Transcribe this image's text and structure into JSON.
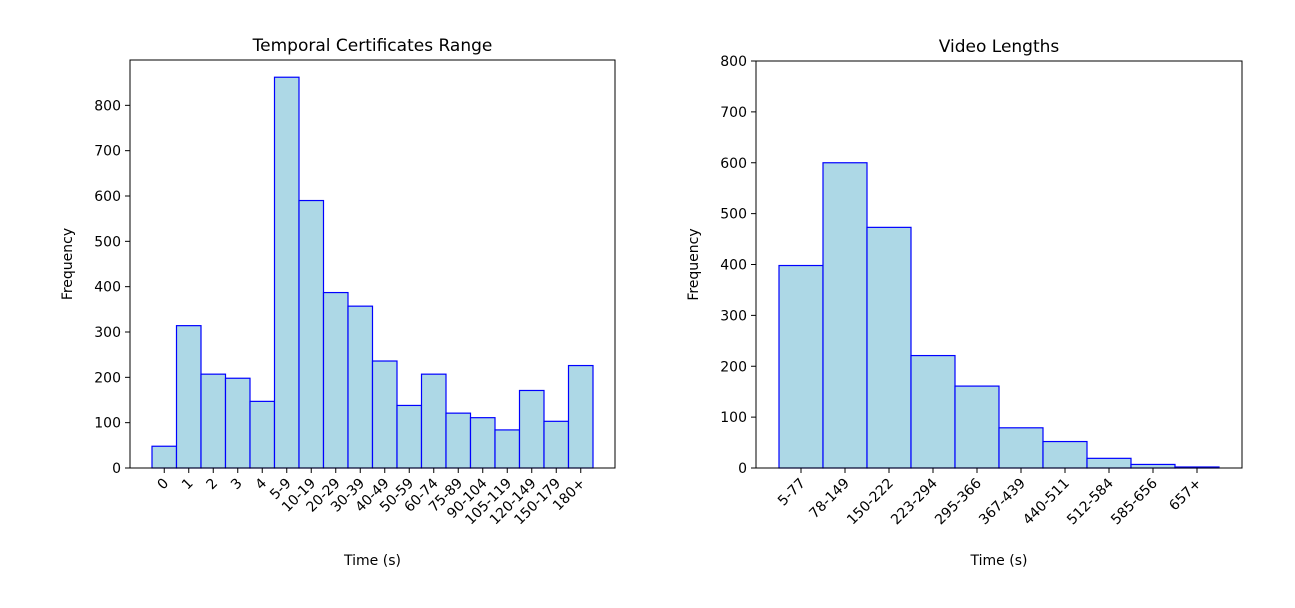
{
  "chart_data": [
    {
      "type": "bar",
      "title": "Temporal Certificates Range",
      "xlabel": "Time (s)",
      "ylabel": "Frequency",
      "categories": [
        "0",
        "1",
        "2",
        "3",
        "4",
        "5-9",
        "10-19",
        "20-29",
        "30-39",
        "40-49",
        "50-59",
        "60-74",
        "75-89",
        "90-104",
        "105-119",
        "120-149",
        "150-179",
        "180+"
      ],
      "values": [
        48,
        314,
        207,
        198,
        147,
        862,
        590,
        387,
        357,
        236,
        138,
        207,
        121,
        111,
        84,
        171,
        103,
        226
      ],
      "ylim": [
        0,
        900
      ],
      "yticks": [
        0,
        100,
        200,
        300,
        400,
        500,
        600,
        700,
        800
      ],
      "bar_fill": "#add8e6",
      "bar_edge": "#0000ff",
      "grid": false
    },
    {
      "type": "bar",
      "title": "Video Lengths",
      "xlabel": "Time (s)",
      "ylabel": "Frequency",
      "categories": [
        "5-77",
        "78-149",
        "150-222",
        "223-294",
        "295-366",
        "367-439",
        "440-511",
        "512-584",
        "585-656",
        "657+"
      ],
      "values": [
        398,
        600,
        473,
        221,
        161,
        79,
        52,
        19,
        7,
        2
      ],
      "ylim": [
        0,
        800
      ],
      "yticks": [
        0,
        100,
        200,
        300,
        400,
        500,
        600,
        700,
        800
      ],
      "bar_fill": "#add8e6",
      "bar_edge": "#0000ff",
      "grid": false
    }
  ]
}
